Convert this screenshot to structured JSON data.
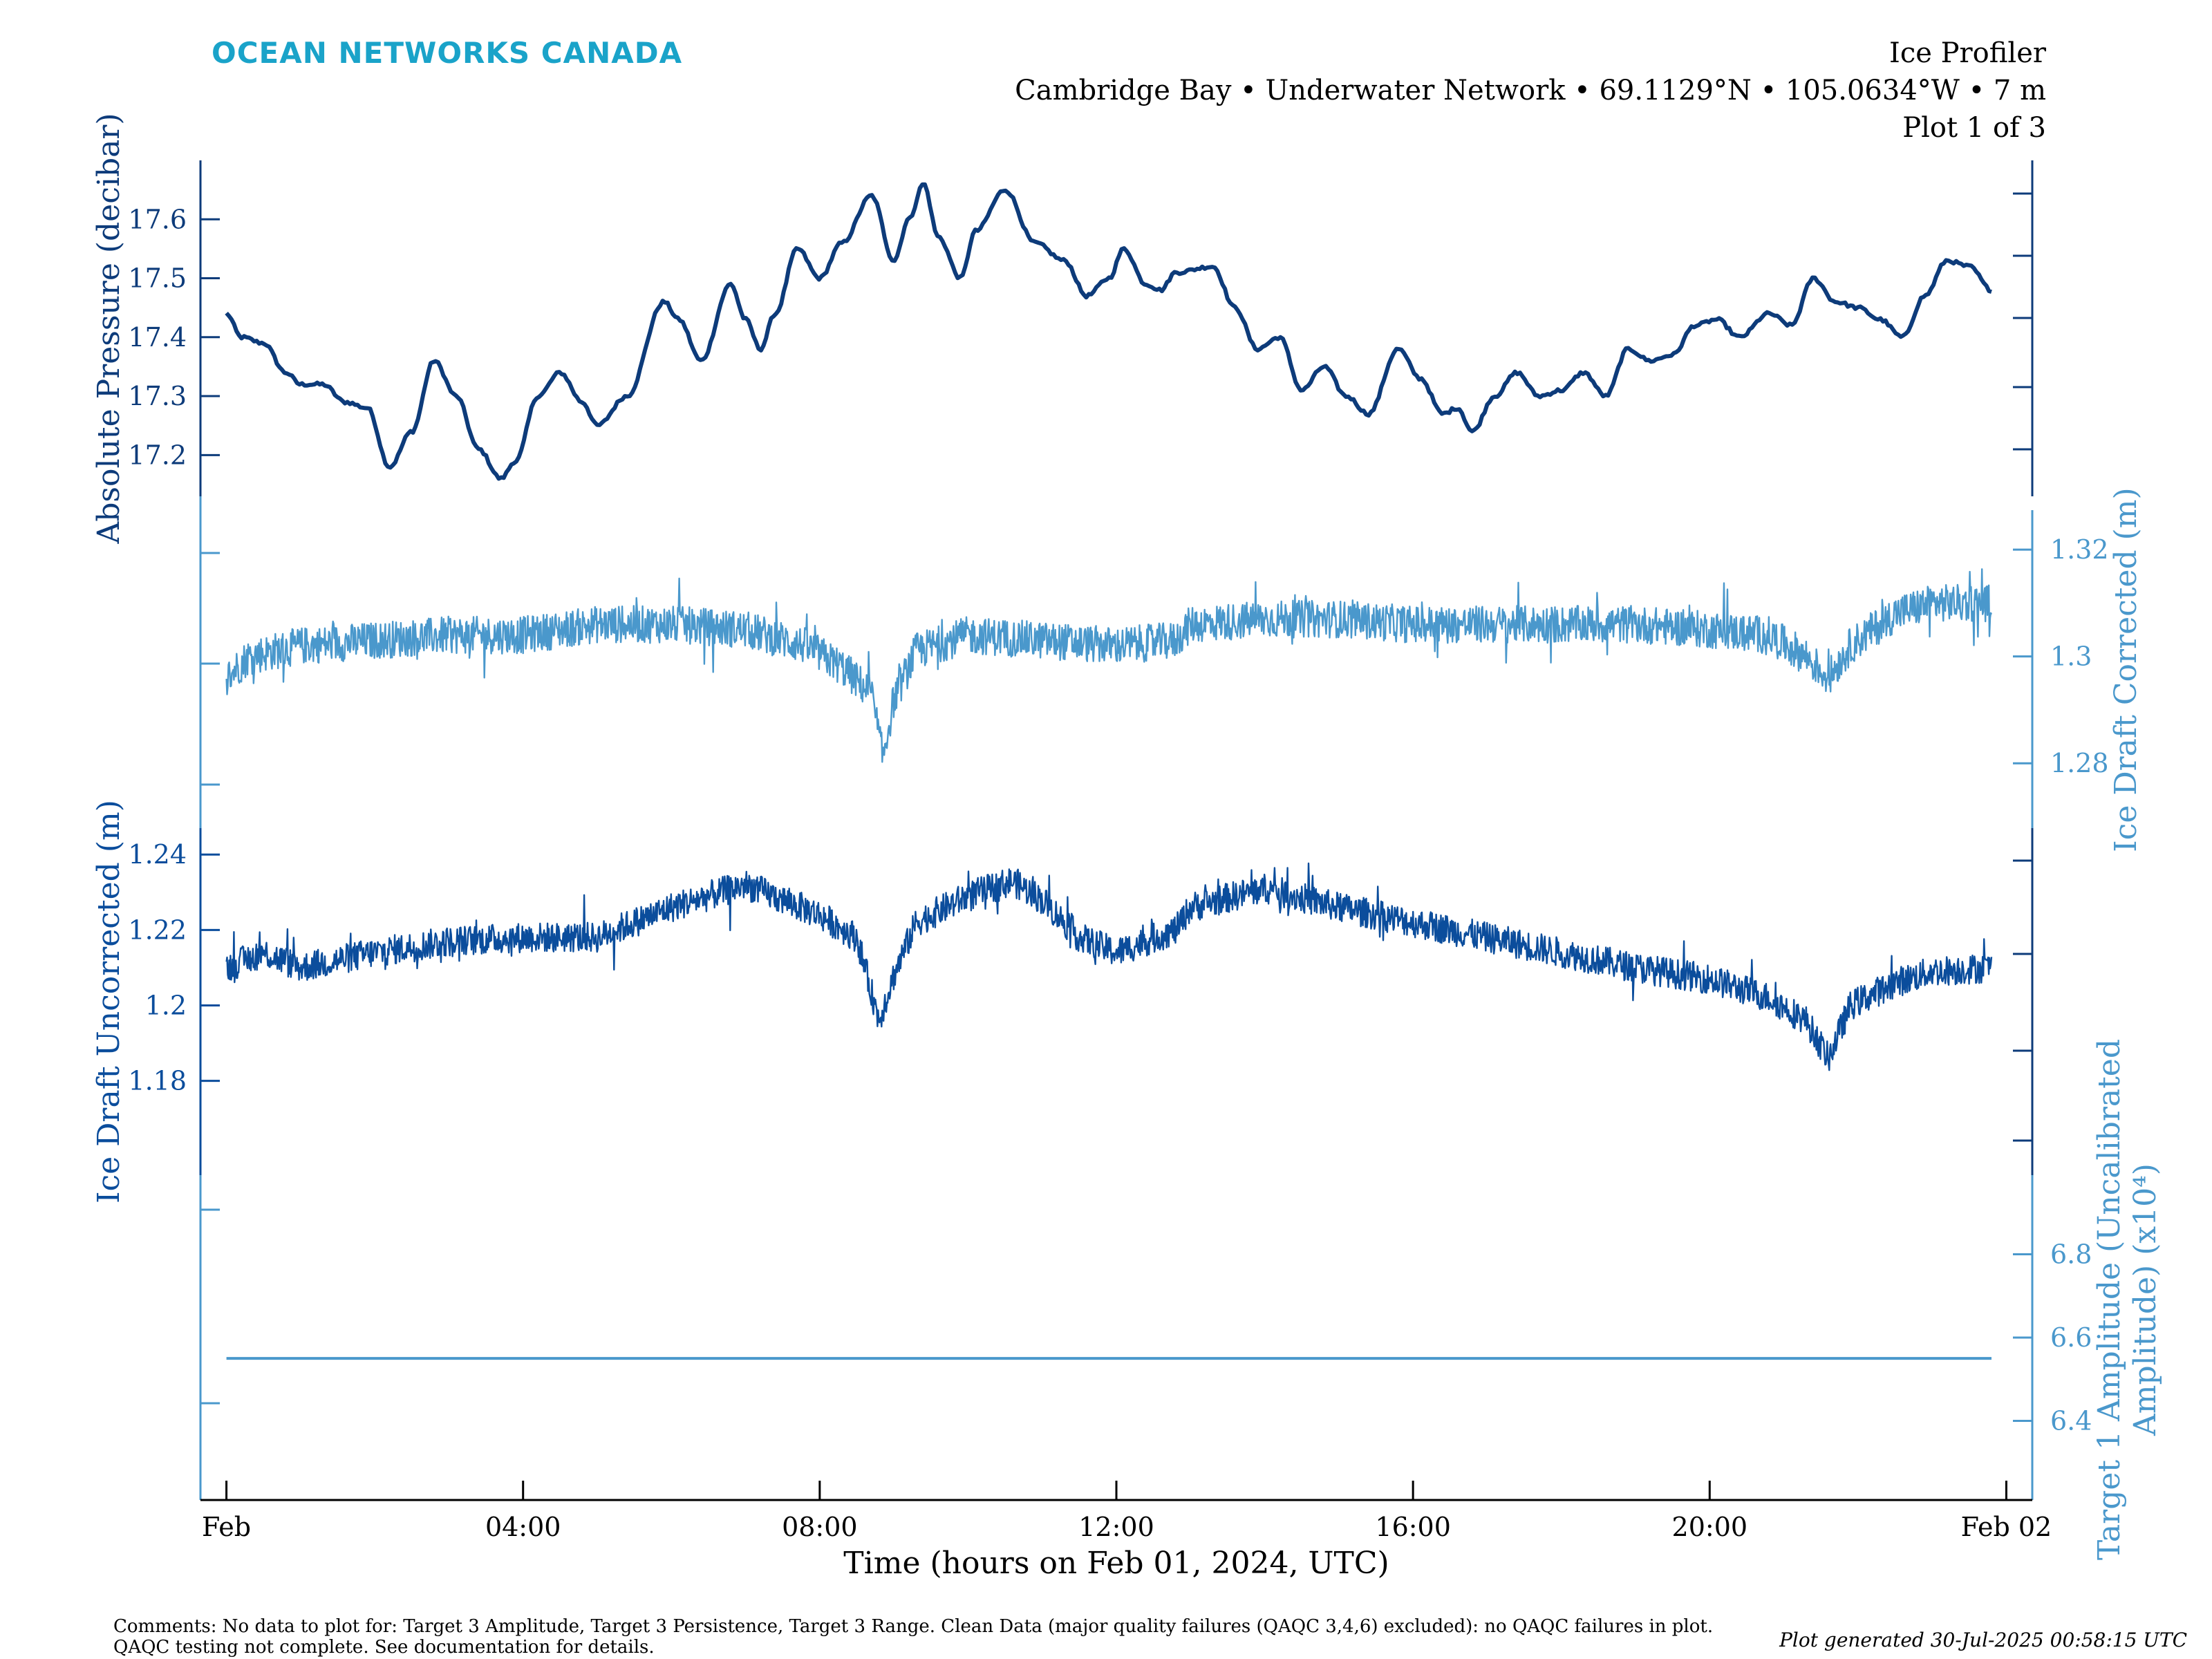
{
  "brand": "OCEAN NETWORKS CANADA",
  "header": {
    "instrument": "Ice Profiler",
    "location": "Cambridge Bay • Underwater Network • 69.1129°N • 105.0634°W • 7 m",
    "plot_index": "Plot 1 of 3"
  },
  "comments": "Comments: No data to plot for: Target 3 Amplitude, Target 3 Persistence, Target 3 Range. Clean Data (major quality failures (QAQC 3,4,6) excluded): no QAQC failures in plot. QAQC testing not complete. See documentation for details.",
  "generated": "Plot generated 30-Jul-2025 00:58:15 UTC",
  "colors": {
    "dark_blue": "#0d3b7a",
    "mid_blue": "#0b4d9c",
    "light_blue": "#4a98cc",
    "teal_brand": "#1aa3c9"
  },
  "chart_data": {
    "type": "line",
    "xlabel": "Time (hours on Feb 01, 2024, UTC)",
    "x_ticks": [
      {
        "hour": 0,
        "label": "Feb"
      },
      {
        "hour": 4,
        "label": "04:00"
      },
      {
        "hour": 8,
        "label": "08:00"
      },
      {
        "hour": 12,
        "label": "12:00"
      },
      {
        "hour": 16,
        "label": "16:00"
      },
      {
        "hour": 20,
        "label": "20:00"
      },
      {
        "hour": 24,
        "label": "Feb 02"
      }
    ],
    "xlim_hours": [
      -0.35,
      24.35
    ],
    "series": [
      {
        "name": "Absolute Pressure",
        "ylabel": "Absolute Pressure (decibar)",
        "axis_side": "left",
        "color": "#0d3b7a",
        "ylim": [
          17.13,
          17.7
        ],
        "yticks": [
          17.2,
          17.3,
          17.4,
          17.5,
          17.6
        ],
        "ytick_labels": [
          "17.2",
          "17.3",
          "17.4",
          "17.5",
          "17.6"
        ],
        "points": [
          [
            0,
            17.44
          ],
          [
            0.2,
            17.4
          ],
          [
            0.5,
            17.39
          ],
          [
            0.8,
            17.34
          ],
          [
            1.0,
            17.32
          ],
          [
            1.3,
            17.32
          ],
          [
            1.6,
            17.29
          ],
          [
            1.9,
            17.28
          ],
          [
            2.2,
            17.18
          ],
          [
            2.5,
            17.24
          ],
          [
            2.8,
            17.36
          ],
          [
            3.1,
            17.3
          ],
          [
            3.4,
            17.21
          ],
          [
            3.7,
            17.16
          ],
          [
            3.9,
            17.19
          ],
          [
            4.2,
            17.3
          ],
          [
            4.5,
            17.34
          ],
          [
            4.8,
            17.29
          ],
          [
            5.0,
            17.25
          ],
          [
            5.4,
            17.3
          ],
          [
            5.9,
            17.46
          ],
          [
            6.1,
            17.43
          ],
          [
            6.4,
            17.36
          ],
          [
            6.8,
            17.49
          ],
          [
            7.0,
            17.43
          ],
          [
            7.2,
            17.38
          ],
          [
            7.4,
            17.44
          ],
          [
            7.7,
            17.55
          ],
          [
            8.0,
            17.5
          ],
          [
            8.3,
            17.56
          ],
          [
            8.7,
            17.64
          ],
          [
            9.0,
            17.53
          ],
          [
            9.2,
            17.6
          ],
          [
            9.4,
            17.66
          ],
          [
            9.6,
            17.57
          ],
          [
            9.9,
            17.5
          ],
          [
            10.1,
            17.58
          ],
          [
            10.5,
            17.65
          ],
          [
            10.9,
            17.56
          ],
          [
            11.3,
            17.53
          ],
          [
            11.6,
            17.47
          ],
          [
            11.9,
            17.5
          ],
          [
            12.1,
            17.55
          ],
          [
            12.4,
            17.49
          ],
          [
            12.6,
            17.48
          ],
          [
            12.8,
            17.51
          ],
          [
            13.3,
            17.52
          ],
          [
            13.6,
            17.45
          ],
          [
            13.9,
            17.38
          ],
          [
            14.2,
            17.4
          ],
          [
            14.5,
            17.31
          ],
          [
            14.8,
            17.35
          ],
          [
            15.1,
            17.3
          ],
          [
            15.4,
            17.27
          ],
          [
            15.8,
            17.38
          ],
          [
            16.1,
            17.33
          ],
          [
            16.4,
            17.27
          ],
          [
            16.6,
            17.28
          ],
          [
            16.8,
            17.24
          ],
          [
            17.1,
            17.3
          ],
          [
            17.4,
            17.34
          ],
          [
            17.7,
            17.3
          ],
          [
            18.0,
            17.31
          ],
          [
            18.3,
            17.34
          ],
          [
            18.6,
            17.3
          ],
          [
            18.9,
            17.38
          ],
          [
            19.2,
            17.36
          ],
          [
            19.5,
            17.37
          ],
          [
            19.8,
            17.42
          ],
          [
            20.1,
            17.43
          ],
          [
            20.4,
            17.4
          ],
          [
            20.8,
            17.44
          ],
          [
            21.1,
            17.42
          ],
          [
            21.4,
            17.5
          ],
          [
            21.7,
            17.46
          ],
          [
            22.0,
            17.45
          ],
          [
            22.3,
            17.43
          ],
          [
            22.6,
            17.4
          ],
          [
            22.9,
            17.47
          ],
          [
            23.2,
            17.53
          ],
          [
            23.5,
            17.52
          ],
          [
            23.8,
            17.48
          ]
        ]
      },
      {
        "name": "Ice Draft Corrected",
        "ylabel": "Ice Draft Corrected (m)",
        "axis_side": "right",
        "color": "#4a98cc",
        "ylim": [
          1.2676,
          1.3274
        ],
        "yticks": [
          1.28,
          1.3,
          1.32
        ],
        "ytick_labels": [
          "1.28",
          "1.3",
          "1.32"
        ],
        "noise_amplitude": 0.0035,
        "points": [
          [
            0,
            1.296
          ],
          [
            0.3,
            1.3
          ],
          [
            1.0,
            1.302
          ],
          [
            2.0,
            1.303
          ],
          [
            3.0,
            1.304
          ],
          [
            4.0,
            1.304
          ],
          [
            5.0,
            1.306
          ],
          [
            6.0,
            1.306
          ],
          [
            7.0,
            1.305
          ],
          [
            7.8,
            1.302
          ],
          [
            8.3,
            1.298
          ],
          [
            8.7,
            1.293
          ],
          [
            8.85,
            1.281
          ],
          [
            9.0,
            1.292
          ],
          [
            9.3,
            1.301
          ],
          [
            10.0,
            1.304
          ],
          [
            11.0,
            1.303
          ],
          [
            12.0,
            1.302
          ],
          [
            12.8,
            1.303
          ],
          [
            13.0,
            1.306
          ],
          [
            14.0,
            1.307
          ],
          [
            15.0,
            1.307
          ],
          [
            16.0,
            1.306
          ],
          [
            17.0,
            1.306
          ],
          [
            18.0,
            1.306
          ],
          [
            19.0,
            1.306
          ],
          [
            20.0,
            1.305
          ],
          [
            20.8,
            1.304
          ],
          [
            21.3,
            1.3
          ],
          [
            21.6,
            1.296
          ],
          [
            21.9,
            1.302
          ],
          [
            22.5,
            1.308
          ],
          [
            23.0,
            1.31
          ],
          [
            23.8,
            1.31
          ]
        ]
      },
      {
        "name": "Ice Draft Uncorrected",
        "ylabel": "Ice Draft Uncorrected (m)",
        "axis_side": "left",
        "color": "#0b4d9c",
        "ylim": [
          1.155,
          1.247
        ],
        "yticks": [
          1.18,
          1.2,
          1.22,
          1.24
        ],
        "ytick_labels": [
          "1.18",
          "1.2",
          "1.22",
          "1.24"
        ],
        "noise_amplitude": 0.004,
        "points": [
          [
            0,
            1.21
          ],
          [
            0.5,
            1.214
          ],
          [
            1.0,
            1.21
          ],
          [
            2.0,
            1.214
          ],
          [
            3.0,
            1.217
          ],
          [
            4.0,
            1.218
          ],
          [
            5.0,
            1.218
          ],
          [
            6.0,
            1.226
          ],
          [
            7.0,
            1.232
          ],
          [
            7.5,
            1.228
          ],
          [
            8.0,
            1.224
          ],
          [
            8.5,
            1.218
          ],
          [
            8.8,
            1.196
          ],
          [
            9.0,
            1.208
          ],
          [
            9.3,
            1.222
          ],
          [
            10.0,
            1.229
          ],
          [
            10.6,
            1.233
          ],
          [
            11.0,
            1.228
          ],
          [
            11.5,
            1.218
          ],
          [
            12.0,
            1.214
          ],
          [
            12.8,
            1.22
          ],
          [
            13.0,
            1.226
          ],
          [
            14.0,
            1.231
          ],
          [
            15.0,
            1.226
          ],
          [
            16.0,
            1.222
          ],
          [
            17.0,
            1.218
          ],
          [
            18.0,
            1.214
          ],
          [
            19.0,
            1.21
          ],
          [
            20.0,
            1.207
          ],
          [
            20.8,
            1.202
          ],
          [
            21.3,
            1.196
          ],
          [
            21.6,
            1.186
          ],
          [
            21.9,
            1.2
          ],
          [
            22.5,
            1.206
          ],
          [
            23.0,
            1.209
          ],
          [
            23.8,
            1.21
          ]
        ]
      },
      {
        "name": "Target 1 Amplitude",
        "ylabel_lines": [
          "Target 1 Amplitude (Uncalibrated",
          "Amplitude) (x10⁴)"
        ],
        "axis_side": "right",
        "color": "#4a98cc",
        "ylim": [
          6.21,
          6.99
        ],
        "yticks": [
          6.4,
          6.6,
          6.8
        ],
        "ytick_labels": [
          "6.4",
          "6.6",
          "6.8"
        ],
        "points": [
          [
            0,
            6.55
          ],
          [
            23.8,
            6.55
          ]
        ]
      }
    ]
  }
}
